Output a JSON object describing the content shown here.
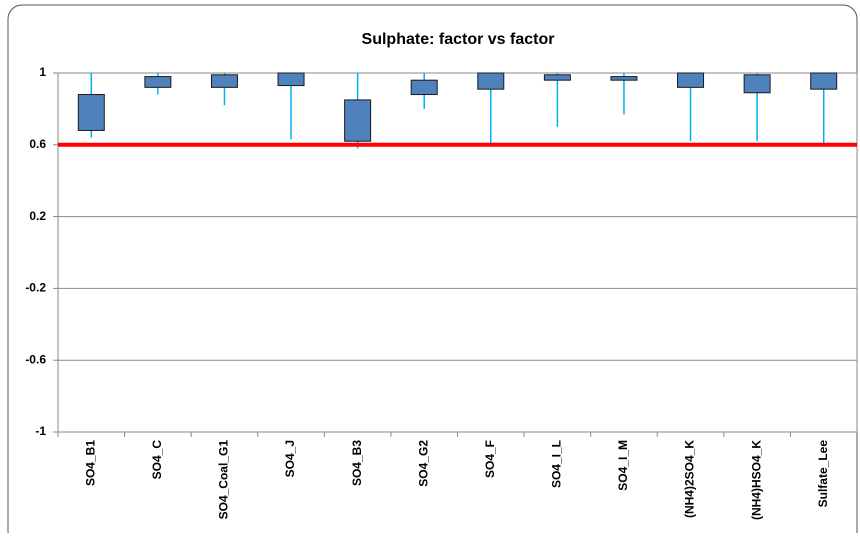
{
  "chart_data": {
    "type": "box",
    "title": "Sulphate: factor vs factor",
    "categories": [
      "SO4_B1",
      "SO4_C",
      "SO4_Coal_G1",
      "SO4_J",
      "SO4_B3",
      "SO4_G2",
      "SO4_F",
      "SO4_I_L",
      "SO4_I_M",
      "(NH4)2SO4_K",
      "(NH4)HSO4_K",
      "Sulfate_Lee"
    ],
    "box_top": [
      0.88,
      0.98,
      0.99,
      1.0,
      0.85,
      0.96,
      1.0,
      0.99,
      0.98,
      1.0,
      0.99,
      1.0
    ],
    "box_bottom": [
      0.68,
      0.92,
      0.92,
      0.93,
      0.62,
      0.88,
      0.91,
      0.96,
      0.96,
      0.92,
      0.89,
      0.91
    ],
    "whisker_low": [
      0.64,
      0.88,
      0.82,
      0.63,
      0.58,
      0.8,
      0.59,
      0.7,
      0.77,
      0.62,
      0.62,
      0.59
    ],
    "whisker_high": [
      1,
      1,
      1,
      1,
      1,
      1,
      1,
      1,
      1,
      1,
      1,
      1
    ],
    "box_color": "#4f81bd",
    "whisker_color": "#00b0f0",
    "threshold": 0.6,
    "threshold_color": "#ff0000",
    "ylim": [
      -1,
      1
    ],
    "yticks": [
      -1,
      -0.6,
      -0.2,
      0.2,
      0.6,
      1
    ],
    "grid": true
  }
}
